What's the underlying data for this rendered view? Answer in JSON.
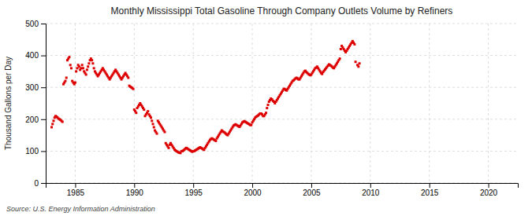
{
  "chart_data": {
    "type": "scatter",
    "title": "Monthly Mississippi Total Gasoline Through Company Outlets Volume by Refiners",
    "ylabel": "Thousand Gallons per Day",
    "annotations": [
      "Source: U.S. Energy Information Administration"
    ],
    "color": "#dd0000",
    "marker": "square",
    "grid": true,
    "xlim": [
      1982.5,
      2022.5
    ],
    "ylim": [
      0,
      500
    ],
    "xticks": [
      1985,
      1990,
      1995,
      2000,
      2005,
      2010,
      2015,
      2020
    ],
    "yticks": [
      0,
      100,
      200,
      300,
      400,
      500
    ],
    "x": [
      1983.0,
      1983.083,
      1983.167,
      1983.25,
      1983.333,
      1983.417,
      1983.5,
      1983.583,
      1983.667,
      1983.75,
      1983.833,
      1983.917,
      1984.0,
      1984.083,
      1984.167,
      1984.25,
      1984.333,
      1984.417,
      1984.5,
      1984.583,
      1984.667,
      1984.75,
      1984.833,
      1984.917,
      1985.0,
      1985.083,
      1985.167,
      1985.25,
      1985.333,
      1985.417,
      1985.5,
      1985.583,
      1985.667,
      1985.75,
      1985.833,
      1985.917,
      1986.0,
      1986.083,
      1986.167,
      1986.25,
      1986.333,
      1986.417,
      1986.5,
      1986.583,
      1986.667,
      1986.75,
      1986.833,
      1986.917,
      1987.0,
      1987.083,
      1987.167,
      1987.25,
      1987.333,
      1987.417,
      1987.5,
      1987.583,
      1987.667,
      1987.75,
      1987.833,
      1987.917,
      1988.0,
      1988.083,
      1988.167,
      1988.25,
      1988.333,
      1988.417,
      1988.5,
      1988.583,
      1988.667,
      1988.75,
      1988.833,
      1988.917,
      1989.0,
      1989.083,
      1989.167,
      1989.25,
      1989.333,
      1989.417,
      1989.5,
      1989.583,
      1989.667,
      1989.75,
      1989.833,
      1989.917,
      1990.0,
      1990.083,
      1990.167,
      1990.25,
      1990.333,
      1990.417,
      1990.5,
      1990.583,
      1990.667,
      1990.75,
      1990.833,
      1990.917,
      1991.0,
      1991.083,
      1991.167,
      1991.25,
      1991.333,
      1991.417,
      1991.5,
      1991.583,
      1991.667,
      1991.75,
      1991.833,
      1991.917,
      1992.0,
      1992.083,
      1992.167,
      1992.25,
      1992.333,
      1992.417,
      1992.5,
      1992.583,
      1992.667,
      1992.75,
      1992.833,
      1992.917,
      1993.0,
      1993.083,
      1993.167,
      1993.25,
      1993.333,
      1993.417,
      1993.5,
      1993.583,
      1993.667,
      1993.75,
      1993.833,
      1993.917,
      1994.0,
      1994.083,
      1994.167,
      1994.25,
      1994.333,
      1994.417,
      1994.5,
      1994.583,
      1994.667,
      1994.75,
      1994.833,
      1994.917,
      1995.0,
      1995.083,
      1995.167,
      1995.25,
      1995.333,
      1995.417,
      1995.5,
      1995.583,
      1995.667,
      1995.75,
      1995.833,
      1995.917,
      1996.0,
      1996.083,
      1996.167,
      1996.25,
      1996.333,
      1996.417,
      1996.5,
      1996.583,
      1996.667,
      1996.75,
      1996.833,
      1996.917,
      1997.0,
      1997.083,
      1997.167,
      1997.25,
      1997.333,
      1997.417,
      1997.5,
      1997.583,
      1997.667,
      1997.75,
      1997.833,
      1997.917,
      1998.0,
      1998.083,
      1998.167,
      1998.25,
      1998.333,
      1998.417,
      1998.5,
      1998.583,
      1998.667,
      1998.75,
      1998.833,
      1998.917,
      1999.0,
      1999.083,
      1999.167,
      1999.25,
      1999.333,
      1999.417,
      1999.5,
      1999.583,
      1999.667,
      1999.75,
      1999.833,
      1999.917,
      2000.0,
      2000.083,
      2000.167,
      2000.25,
      2000.333,
      2000.417,
      2000.5,
      2000.583,
      2000.667,
      2000.75,
      2000.833,
      2000.917,
      2001.0,
      2001.083,
      2001.167,
      2001.25,
      2001.333,
      2001.417,
      2001.5,
      2001.583,
      2001.667,
      2001.75,
      2001.833,
      2001.917,
      2002.0,
      2002.083,
      2002.167,
      2002.25,
      2002.333,
      2002.417,
      2002.5,
      2002.583,
      2002.667,
      2002.75,
      2002.833,
      2002.917,
      2003.0,
      2003.083,
      2003.167,
      2003.25,
      2003.333,
      2003.417,
      2003.5,
      2003.583,
      2003.667,
      2003.75,
      2003.833,
      2003.917,
      2004.0,
      2004.083,
      2004.167,
      2004.25,
      2004.333,
      2004.417,
      2004.5,
      2004.583,
      2004.667,
      2004.75,
      2004.833,
      2004.917,
      2005.0,
      2005.083,
      2005.167,
      2005.25,
      2005.333,
      2005.417,
      2005.5,
      2005.583,
      2005.667,
      2005.75,
      2005.833,
      2005.917,
      2006.0,
      2006.083,
      2006.167,
      2006.25,
      2006.333,
      2006.417,
      2006.5,
      2006.583,
      2006.667,
      2006.75,
      2006.833,
      2006.917,
      2007.0,
      2007.083,
      2007.167,
      2007.25,
      2007.333,
      2007.417,
      2007.5,
      2007.583,
      2007.667,
      2007.75,
      2007.833,
      2007.917,
      2008.0,
      2008.083,
      2008.167,
      2008.25,
      2008.333,
      2008.417,
      2008.5,
      2008.583,
      2008.667,
      2008.75,
      2008.917,
      2009.0,
      2009.083
    ],
    "values": [
      175,
      185,
      195,
      205,
      210,
      208,
      205,
      202,
      200,
      198,
      195,
      192,
      310,
      315,
      320,
      330,
      385,
      390,
      395,
      370,
      360,
      320,
      315,
      310,
      315,
      350,
      360,
      370,
      365,
      355,
      360,
      370,
      360,
      350,
      345,
      340,
      355,
      365,
      375,
      385,
      390,
      385,
      375,
      360,
      350,
      345,
      340,
      335,
      340,
      345,
      350,
      355,
      360,
      355,
      350,
      345,
      340,
      335,
      330,
      325,
      330,
      335,
      340,
      345,
      350,
      355,
      350,
      345,
      340,
      335,
      330,
      325,
      330,
      335,
      340,
      345,
      340,
      335,
      330,
      305,
      302,
      300,
      298,
      295,
      230,
      225,
      220,
      235,
      240,
      245,
      250,
      245,
      240,
      235,
      230,
      210,
      215,
      220,
      225,
      215,
      210,
      205,
      195,
      185,
      175,
      165,
      160,
      155,
      195,
      190,
      185,
      180,
      175,
      170,
      165,
      160,
      125,
      120,
      115,
      110,
      120,
      125,
      120,
      115,
      110,
      105,
      102,
      100,
      98,
      96,
      95,
      94,
      100,
      100,
      102,
      105,
      108,
      110,
      108,
      106,
      104,
      102,
      100,
      98,
      100,
      100,
      102,
      104,
      106,
      108,
      110,
      112,
      110,
      108,
      106,
      104,
      110,
      115,
      120,
      125,
      130,
      135,
      138,
      140,
      138,
      136,
      134,
      132,
      140,
      145,
      150,
      155,
      160,
      165,
      162,
      160,
      158,
      155,
      152,
      150,
      155,
      160,
      165,
      170,
      175,
      180,
      182,
      184,
      182,
      180,
      178,
      176,
      180,
      185,
      190,
      192,
      194,
      192,
      190,
      188,
      186,
      184,
      182,
      182,
      190,
      195,
      200,
      205,
      208,
      210,
      212,
      215,
      218,
      218,
      215,
      210,
      210,
      215,
      220,
      235,
      245,
      255,
      260,
      265,
      262,
      258,
      255,
      250,
      255,
      260,
      265,
      270,
      275,
      280,
      285,
      290,
      295,
      295,
      292,
      290,
      295,
      300,
      305,
      310,
      315,
      320,
      322,
      325,
      328,
      330,
      328,
      325,
      325,
      330,
      335,
      340,
      345,
      350,
      352,
      348,
      345,
      342,
      340,
      338,
      340,
      345,
      350,
      355,
      360,
      362,
      365,
      360,
      355,
      350,
      345,
      342,
      348,
      352,
      356,
      360,
      364,
      368,
      372,
      370,
      368,
      365,
      362,
      360,
      365,
      370,
      375,
      380,
      385,
      390,
      420,
      430,
      425,
      420,
      415,
      410,
      415,
      420,
      425,
      430,
      435,
      440,
      445,
      440,
      435,
      380,
      370,
      365,
      375
    ]
  }
}
